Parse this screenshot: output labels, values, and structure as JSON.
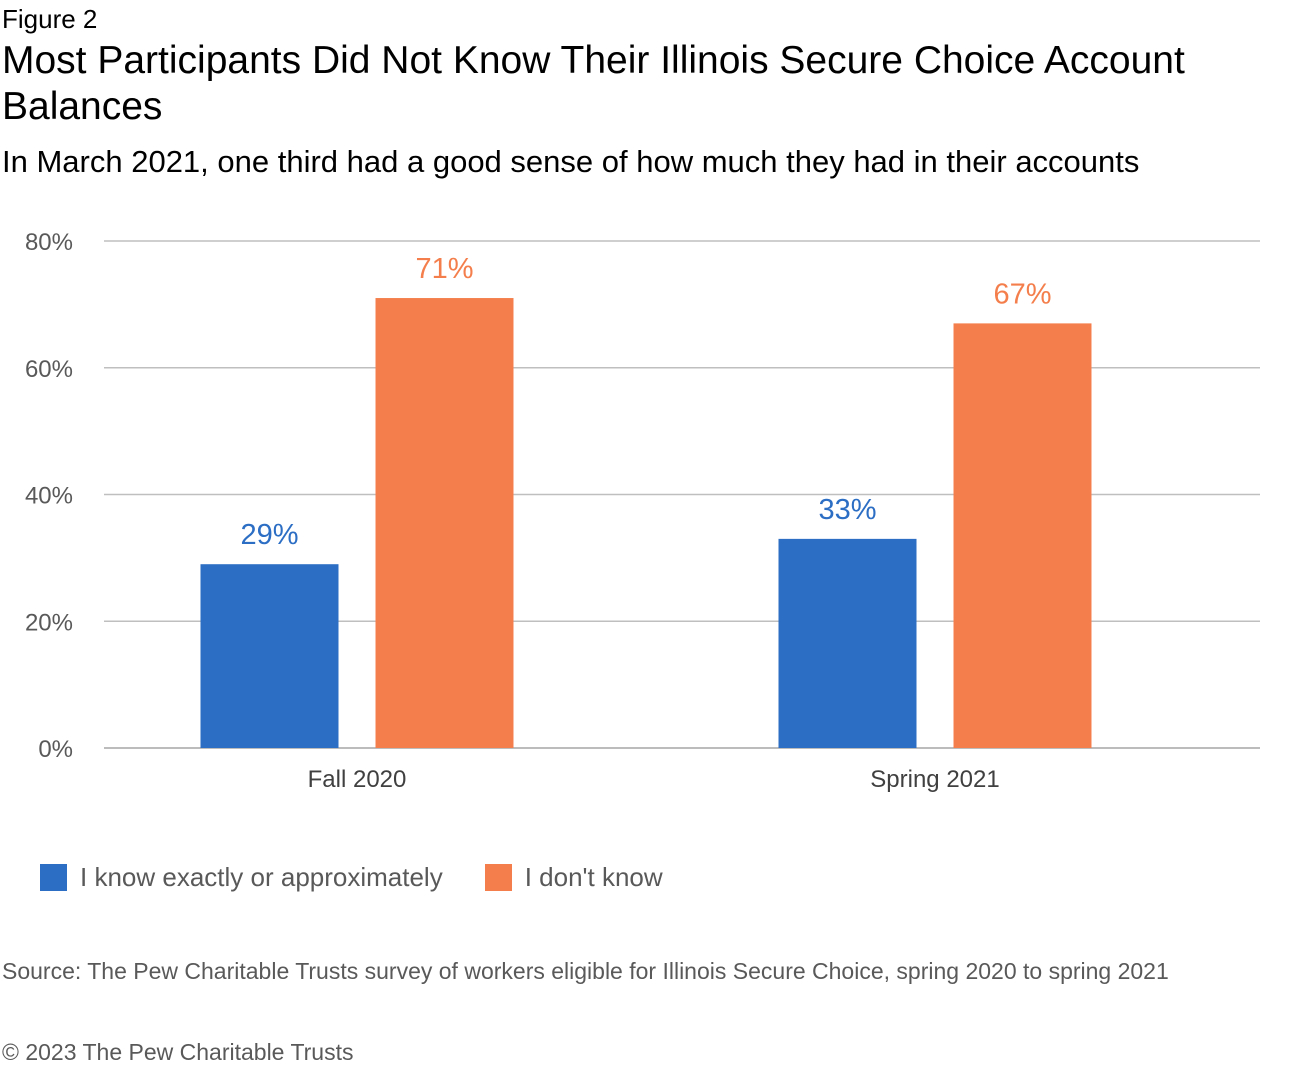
{
  "header": {
    "figure_label": "Figure 2",
    "title": "Most Participants Did Not Know Their Illinois Secure Choice Account Balances",
    "subtitle": "In March 2021, one third had a good sense of how much they had in their accounts"
  },
  "chart_data": {
    "type": "bar",
    "categories": [
      "Fall 2020",
      "Spring 2021"
    ],
    "series": [
      {
        "name": "I know exactly or approximately",
        "values": [
          29,
          33
        ],
        "labels": [
          "29%",
          "33%"
        ],
        "color": "#2c6ec4"
      },
      {
        "name": "I don't know",
        "values": [
          71,
          67
        ],
        "labels": [
          "71%",
          "67%"
        ],
        "color": "#f47f4c"
      }
    ],
    "ylim": [
      0,
      80
    ],
    "yticks": [
      0,
      20,
      40,
      60,
      80
    ],
    "ytick_labels": [
      "0%",
      "20%",
      "40%",
      "60%",
      "80%"
    ],
    "grid": true,
    "legend_position": "bottom-left"
  },
  "footer": {
    "source": "Source: The Pew Charitable Trusts survey of workers eligible for Illinois Secure Choice, spring 2020 to spring 2021",
    "copyright": "© 2023 The Pew Charitable Trusts"
  }
}
